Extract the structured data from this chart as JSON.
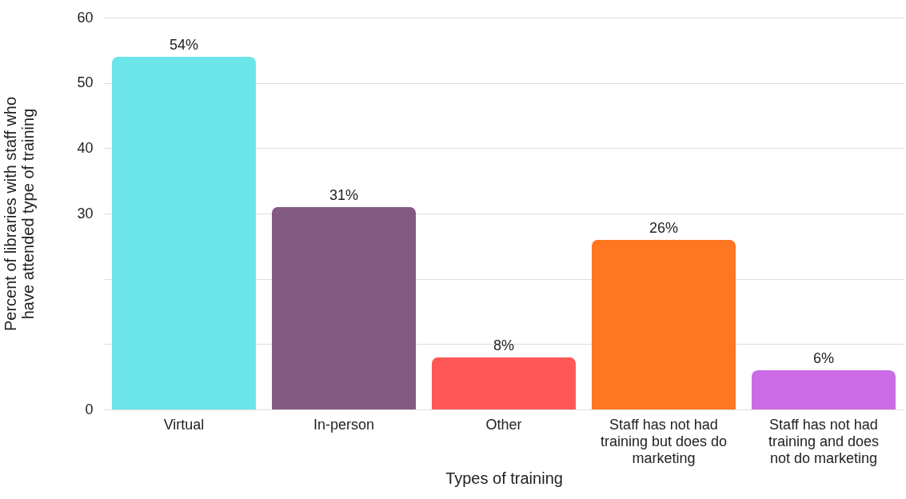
{
  "chart_data": {
    "type": "bar",
    "xlabel": "Types of training",
    "ylabel": "Percent of libraries with staff who have attended type of training",
    "categories": [
      "Virtual",
      "In-person",
      "Other",
      "Staff has not had training but does do marketing",
      "Staff has not had training and does not do marketing"
    ],
    "values": [
      54,
      31,
      8,
      26,
      6
    ],
    "colors": [
      "#6ce5e8",
      "#835a82",
      "#ff5757",
      "#ff7722",
      "#cb6ce6"
    ],
    "value_labels": [
      "54%",
      "31%",
      "8%",
      "26%",
      "6%"
    ],
    "ylim": [
      0,
      60
    ],
    "yticks": [
      0,
      {
        "value": 10,
        "label": null
      },
      {
        "value": 20,
        "label": null
      },
      30,
      40,
      50,
      60
    ],
    "grid": "y"
  }
}
